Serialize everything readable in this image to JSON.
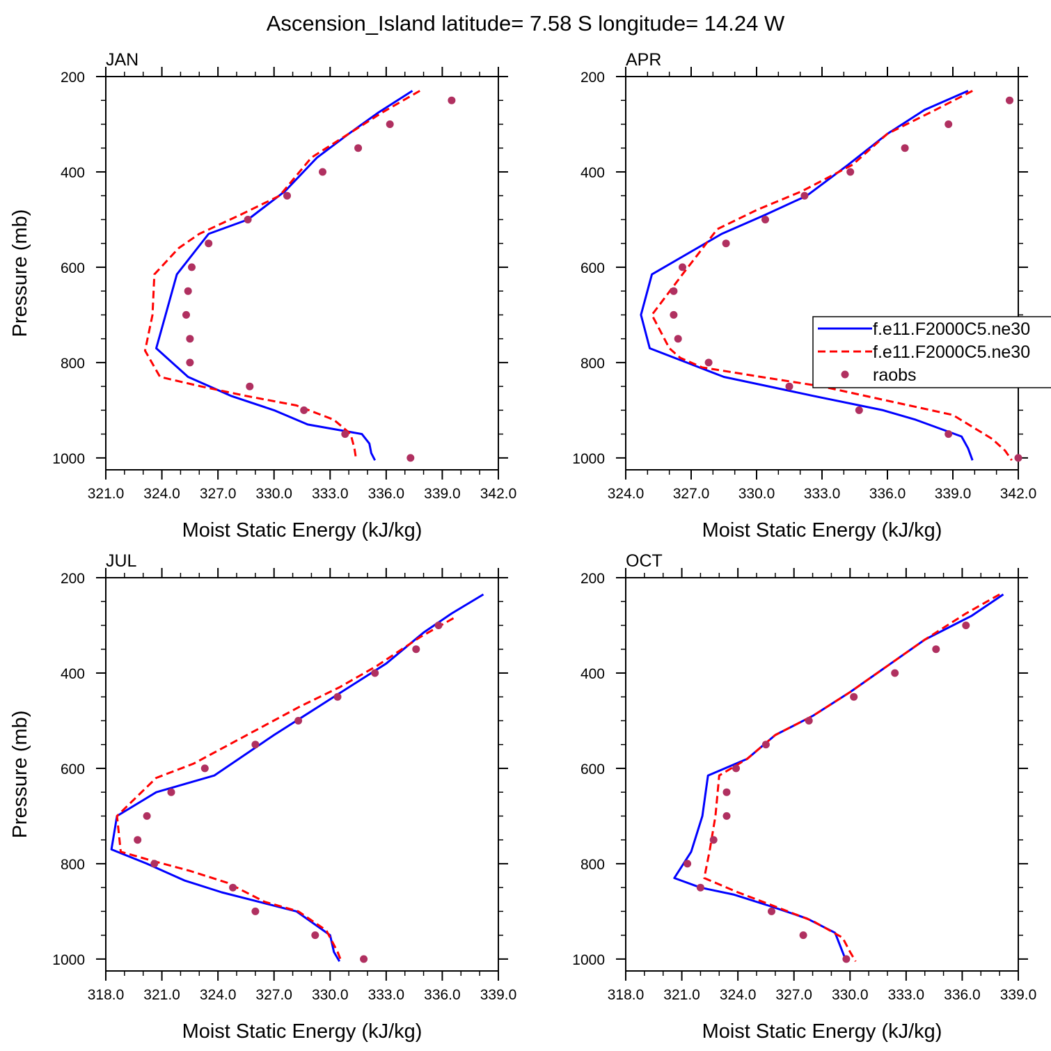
{
  "figure": {
    "title": "Ascension_Island  latitude= 7.58 S longitude= 14.24 W"
  },
  "legend": {
    "entries": [
      {
        "label": "f.e11.F2000C5.ne30",
        "style": "solid",
        "color": "#0000ff"
      },
      {
        "label": "f.e11.F2000C5.ne30",
        "style": "dashed",
        "color": "#ff0000"
      },
      {
        "label": "raobs",
        "style": "marker",
        "color": "#b03060"
      }
    ]
  },
  "colors": {
    "model_solid": "#0000ff",
    "model_dashed": "#ff0000",
    "raobs": "#b03060",
    "axes": "#000000"
  },
  "chart_data": [
    {
      "type": "line",
      "label": "JAN",
      "xlabel": "Moist Static Energy (kJ/kg)",
      "ylabel": "Pressure (mb)",
      "xlim": [
        321,
        342
      ],
      "ylim": [
        1025,
        200
      ],
      "xticks": [
        "321.0",
        "324.0",
        "327.0",
        "330.0",
        "333.0",
        "336.0",
        "339.0",
        "342.0"
      ],
      "yticks": [
        "200",
        "400",
        "600",
        "800",
        "1000"
      ],
      "series": [
        {
          "style": "solid",
          "x": [
            337.4,
            335.6,
            334.0,
            332.3,
            330.6,
            328.6,
            326.5,
            324.8,
            324.2,
            323.7,
            325.4,
            327.7,
            330.0,
            331.8,
            334.7,
            335.1,
            335.2,
            335.4
          ],
          "y": [
            230,
            275,
            320,
            370,
            440,
            500,
            530,
            615,
            700,
            770,
            830,
            870,
            900,
            930,
            950,
            970,
            990,
            1005
          ]
        },
        {
          "style": "dashed",
          "x": [
            337.8,
            335.8,
            334.0,
            332.0,
            330.3,
            328.2,
            326.0,
            324.9,
            323.6,
            323.5,
            323.1,
            323.9,
            326.1,
            328.5,
            331.2,
            333.2,
            334.1,
            334.3,
            334.4
          ],
          "y": [
            230,
            275,
            320,
            370,
            450,
            490,
            530,
            560,
            615,
            700,
            775,
            830,
            850,
            870,
            890,
            920,
            950,
            980,
            1005
          ]
        }
      ],
      "raobs": {
        "x": [
          339.5,
          336.2,
          334.5,
          332.6,
          330.7,
          328.6,
          326.5,
          325.6,
          325.4,
          325.3,
          325.5,
          325.5,
          328.7,
          331.6,
          333.8,
          337.3
        ],
        "y": [
          250,
          300,
          350,
          400,
          450,
          500,
          550,
          600,
          650,
          700,
          750,
          800,
          850,
          900,
          950,
          1000
        ]
      }
    },
    {
      "type": "line",
      "label": "APR",
      "xlabel": "Moist Static Energy (kJ/kg)",
      "ylabel": "",
      "xlim": [
        324,
        342
      ],
      "ylim": [
        1025,
        200
      ],
      "xticks": [
        "324.0",
        "327.0",
        "330.0",
        "333.0",
        "336.0",
        "339.0",
        "342.0"
      ],
      "yticks": [
        "200",
        "400",
        "600",
        "800",
        "1000"
      ],
      "series": [
        {
          "style": "solid",
          "x": [
            339.7,
            337.7,
            336.0,
            334.2,
            332.3,
            330.4,
            328.4,
            325.2,
            324.7,
            325.1,
            326.8,
            328.5,
            332.6,
            335.8,
            337.3,
            339.4,
            339.7,
            339.9
          ],
          "y": [
            230,
            270,
            320,
            385,
            450,
            490,
            530,
            615,
            700,
            770,
            800,
            830,
            870,
            900,
            920,
            955,
            980,
            1005
          ]
        },
        {
          "style": "dashed",
          "x": [
            339.9,
            338.2,
            336.0,
            334.4,
            332.1,
            330.0,
            328.2,
            326.6,
            325.2,
            326.0,
            326.5,
            327.5,
            330.2,
            333.0,
            336.0,
            339.0,
            340.8,
            341.4,
            341.7
          ],
          "y": [
            230,
            270,
            320,
            385,
            440,
            480,
            520,
            615,
            700,
            770,
            790,
            810,
            830,
            850,
            880,
            910,
            960,
            985,
            1005
          ]
        }
      ],
      "raobs": {
        "x": [
          341.6,
          338.8,
          336.8,
          334.3,
          332.2,
          330.4,
          328.6,
          326.6,
          326.2,
          326.2,
          326.4,
          327.8,
          331.5,
          334.7,
          338.8,
          342.0
        ],
        "y": [
          250,
          300,
          350,
          400,
          450,
          500,
          550,
          600,
          650,
          700,
          750,
          800,
          850,
          900,
          950,
          1000
        ]
      }
    },
    {
      "type": "line",
      "label": "JUL",
      "xlabel": "Moist Static Energy (kJ/kg)",
      "ylabel": "Pressure (mb)",
      "xlim": [
        318,
        339
      ],
      "ylim": [
        1025,
        200
      ],
      "xticks": [
        "318.0",
        "321.0",
        "324.0",
        "327.0",
        "330.0",
        "333.0",
        "336.0",
        "339.0"
      ],
      "yticks": [
        "200",
        "400",
        "600",
        "800",
        "1000"
      ],
      "series": [
        {
          "style": "solid",
          "x": [
            338.2,
            336.5,
            335.0,
            333.0,
            331.0,
            329.0,
            327.0,
            323.8,
            320.7,
            318.6,
            318.3,
            320.2,
            322.2,
            324.2,
            326.2,
            328.2,
            330.0,
            330.2,
            330.5
          ],
          "y": [
            235,
            275,
            315,
            380,
            430,
            480,
            530,
            615,
            650,
            700,
            770,
            800,
            835,
            860,
            880,
            900,
            950,
            985,
            1005
          ]
        },
        {
          "style": "dashed",
          "x": [
            336.6,
            334.8,
            332.5,
            330.5,
            328.4,
            326.5,
            324.6,
            322.7,
            320.7,
            318.6,
            318.8,
            320.6,
            322.5,
            324.5,
            326.5,
            328.3,
            329.8,
            330.4,
            330.6
          ],
          "y": [
            285,
            325,
            385,
            430,
            470,
            510,
            550,
            590,
            620,
            700,
            775,
            795,
            815,
            840,
            880,
            900,
            940,
            985,
            1005
          ]
        }
      ],
      "raobs": {
        "x": [
          335.8,
          334.6,
          332.4,
          330.4,
          328.3,
          326.0,
          323.3,
          321.5,
          320.2,
          319.7,
          320.6,
          324.8,
          326.0,
          329.2,
          331.8
        ],
        "y": [
          300,
          350,
          400,
          450,
          500,
          550,
          600,
          650,
          700,
          750,
          800,
          850,
          900,
          950,
          1000
        ]
      }
    },
    {
      "type": "line",
      "label": "OCT",
      "xlabel": "Moist Static Energy (kJ/kg)",
      "ylabel": "",
      "xlim": [
        318,
        339
      ],
      "ylim": [
        1025,
        200
      ],
      "xticks": [
        "318.0",
        "321.0",
        "324.0",
        "327.0",
        "330.0",
        "333.0",
        "336.0",
        "339.0"
      ],
      "yticks": [
        "200",
        "400",
        "600",
        "800",
        "1000"
      ],
      "series": [
        {
          "style": "solid",
          "x": [
            338.2,
            336.5,
            334.0,
            332.0,
            330.0,
            328.0,
            326.0,
            324.5,
            322.4,
            322.1,
            321.5,
            320.6,
            322.0,
            323.8,
            325.8,
            327.7,
            329.2,
            329.6,
            329.8
          ],
          "y": [
            235,
            280,
            330,
            385,
            440,
            490,
            530,
            580,
            615,
            700,
            775,
            830,
            850,
            865,
            890,
            915,
            945,
            985,
            1005
          ]
        },
        {
          "style": "dashed",
          "x": [
            338.0,
            336.2,
            334.0,
            332.0,
            330.0,
            328.0,
            326.0,
            324.5,
            323.0,
            322.8,
            322.5,
            322.2,
            324.0,
            326.0,
            328.0,
            329.6,
            330.0,
            330.3
          ],
          "y": [
            235,
            275,
            330,
            385,
            440,
            490,
            530,
            580,
            615,
            700,
            770,
            830,
            860,
            890,
            920,
            955,
            985,
            1005
          ]
        }
      ],
      "raobs": {
        "x": [
          336.2,
          334.6,
          332.4,
          330.2,
          327.8,
          325.5,
          323.9,
          323.4,
          323.4,
          322.7,
          321.3,
          322.0,
          325.8,
          327.5,
          329.8
        ],
        "y": [
          300,
          350,
          400,
          450,
          500,
          550,
          600,
          650,
          700,
          750,
          800,
          850,
          900,
          950,
          1000
        ]
      }
    }
  ]
}
